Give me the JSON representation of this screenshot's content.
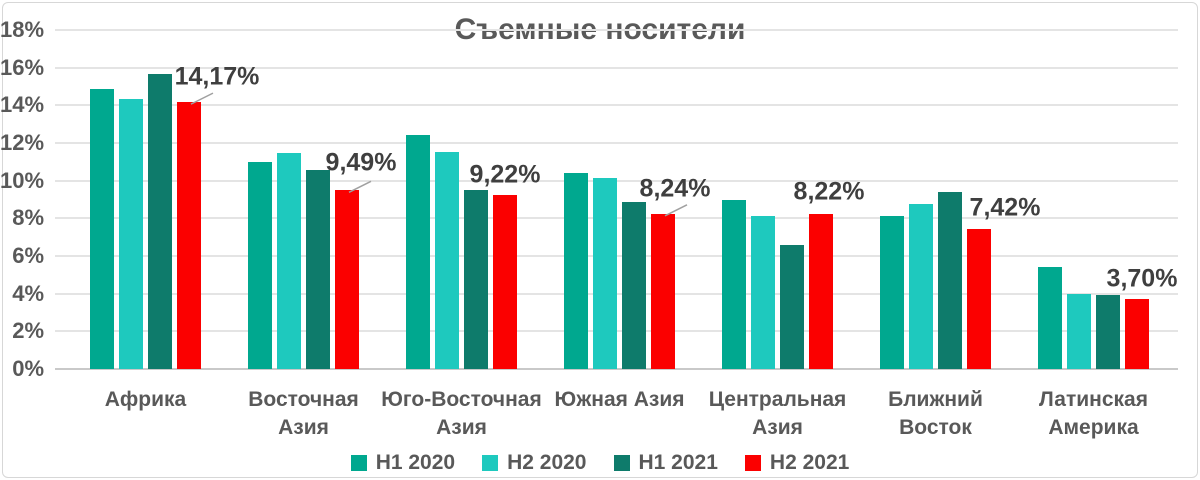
{
  "chart_data": {
    "type": "bar",
    "title": "Съемные носители",
    "categories": [
      "Африка",
      "Восточная Азия",
      "Юго-Восточная Азия",
      "Южная Азия",
      "Центральная Азия",
      "Ближний Восток",
      "Латинская Америка"
    ],
    "category_labels": [
      "Африка",
      "Восточная\nАзия",
      "Юго-Восточная\nАзия",
      "Южная Азия",
      "Центральная\nАзия",
      "Ближний\nВосток",
      "Латинская\nАмерика"
    ],
    "series": [
      {
        "name": "H1 2020",
        "color": "#00A88F",
        "values": [
          14.85,
          11.0,
          12.45,
          10.4,
          9.0,
          8.1,
          5.4
        ]
      },
      {
        "name": "H2 2020",
        "color": "#1EC9BE",
        "values": [
          14.35,
          11.45,
          11.5,
          10.15,
          8.1,
          8.75,
          4.0
        ]
      },
      {
        "name": "H1 2021",
        "color": "#0E7B6B",
        "values": [
          15.65,
          10.55,
          9.5,
          8.85,
          6.6,
          9.4,
          3.95
        ]
      },
      {
        "name": "H2 2021",
        "color": "#FB0000",
        "values": [
          14.17,
          9.49,
          9.22,
          8.24,
          8.22,
          7.42,
          3.7
        ]
      }
    ],
    "data_labels": {
      "series": "H2 2021",
      "values": [
        "14,17%",
        "9,49%",
        "9,22%",
        "8,24%",
        "8,22%",
        "7,42%",
        "3,70%"
      ]
    },
    "y_axis": {
      "min": 0,
      "max": 18,
      "step": 2,
      "tick_labels": [
        "0%",
        "2%",
        "4%",
        "6%",
        "8%",
        "10%",
        "12%",
        "14%",
        "16%",
        "18%"
      ]
    },
    "grid": true,
    "legend_position": "bottom",
    "colors": {
      "text": "#595959",
      "data_label_text": "#3F3F3F",
      "gridline": "#E4E4E4",
      "axis_line": "#C9C9C9",
      "frame_border": "#D7D7D7",
      "leader_line": "#A0A0A0",
      "background": "#FFFFFF"
    }
  }
}
